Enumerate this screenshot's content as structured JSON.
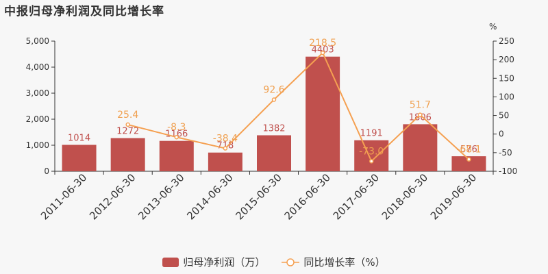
{
  "title": "中报归母净利润及同比增长率",
  "chart_data": {
    "type": "bar",
    "categories": [
      "2011-06-30",
      "2012-06-30",
      "2013-06-30",
      "2014-06-30",
      "2015-06-30",
      "2016-06-30",
      "2017-06-30",
      "2018-06-30",
      "2019-06-30"
    ],
    "series": [
      {
        "name": "归母净利润（万）",
        "type": "bar",
        "axis": "left",
        "values": [
          1014,
          1272,
          1166,
          718,
          1382,
          4403,
          1191,
          1806,
          576
        ],
        "labels": [
          "1014",
          "1272",
          "1166",
          "718",
          "1382",
          "4403",
          "1191",
          "1806",
          "576"
        ],
        "color": "#c0504d"
      },
      {
        "name": "同比增长率（%）",
        "type": "line",
        "axis": "right",
        "values": [
          null,
          25.4,
          -8.3,
          -38.4,
          92.6,
          218.5,
          -73.0,
          51.7,
          -68.1
        ],
        "labels": [
          "",
          "25.4",
          "-8.3",
          "-38.4",
          "92.6",
          "218.5",
          "-73.0",
          "51.7",
          "-68.1"
        ],
        "color": "#f5a051"
      }
    ],
    "left_axis": {
      "ylim": [
        0,
        5000
      ],
      "ticks": [
        0,
        1000,
        2000,
        3000,
        4000,
        5000
      ],
      "tick_labels": [
        "0",
        "1,000",
        "2,000",
        "3,000",
        "4,000",
        "5,000"
      ]
    },
    "right_axis": {
      "unit": "%",
      "ylim": [
        -100,
        250
      ],
      "ticks": [
        -100,
        -50,
        0,
        50,
        100,
        150,
        200,
        250
      ],
      "tick_labels": [
        "-100",
        "-50",
        "0",
        "50",
        "100",
        "150",
        "200",
        "250"
      ]
    },
    "legend_position": "bottom-center",
    "grid": false
  }
}
